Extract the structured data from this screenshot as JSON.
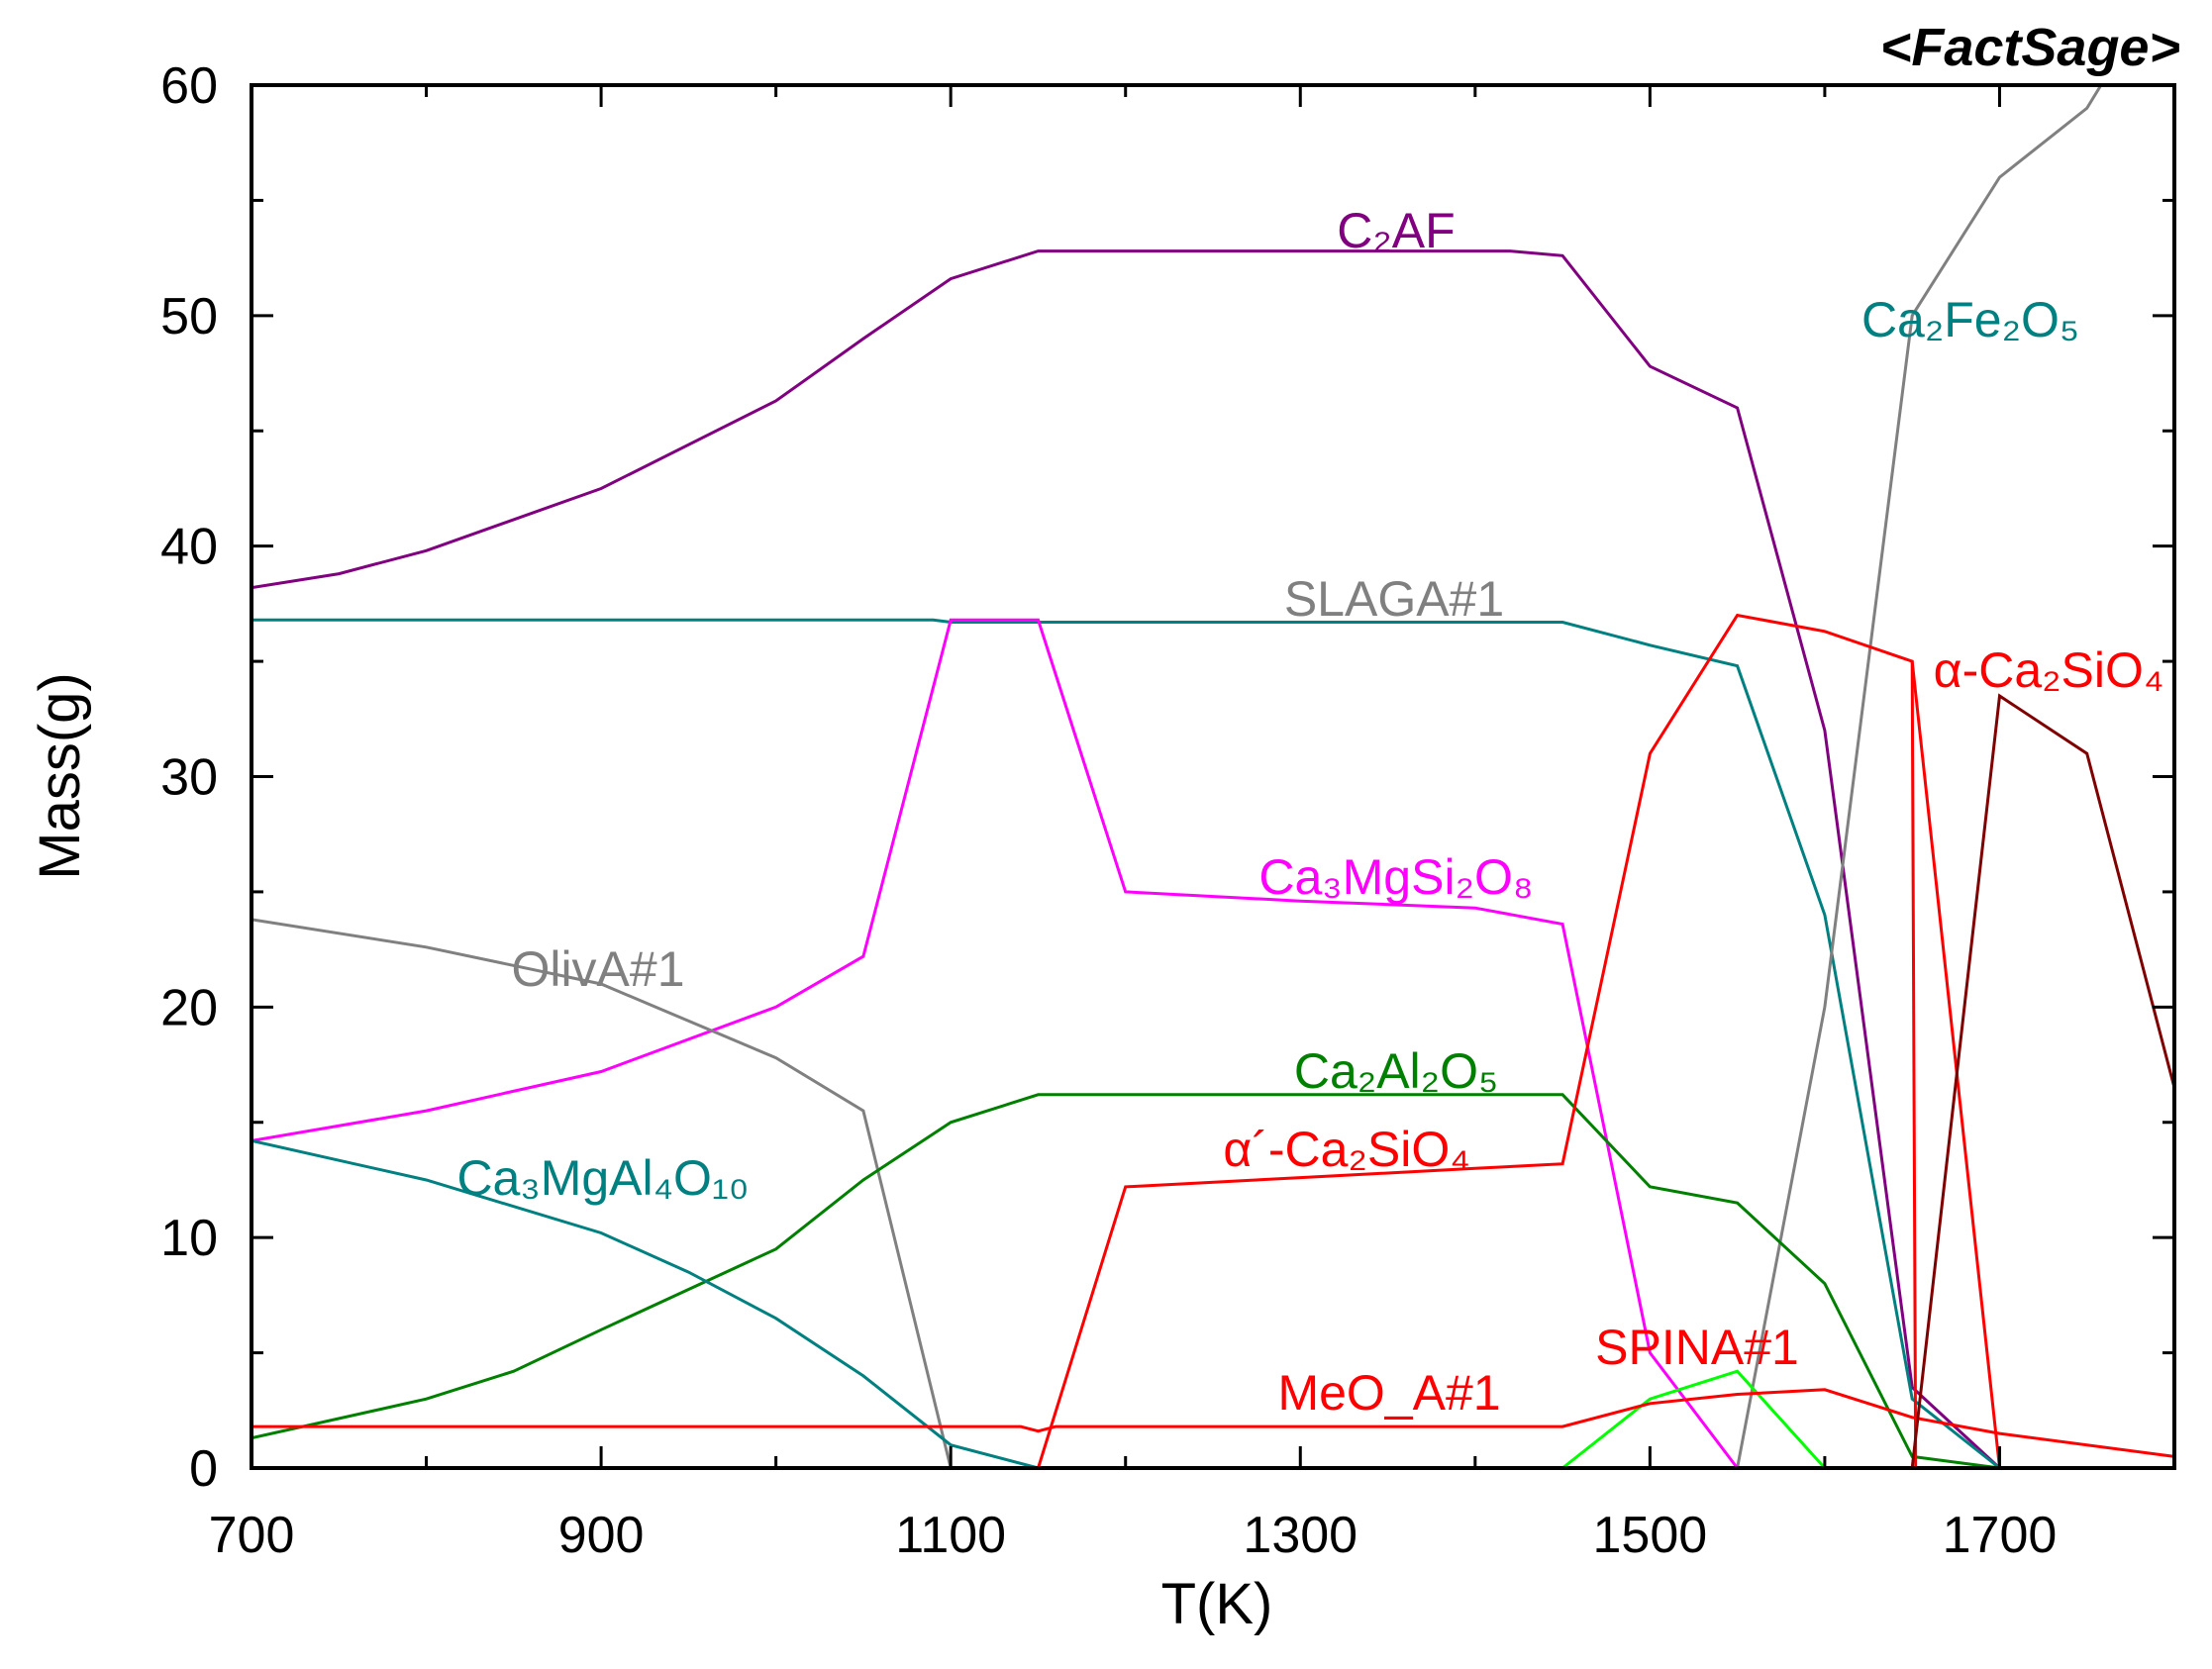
{
  "chart_data": {
    "type": "line",
    "brand": "<FactSage>",
    "xlabel": "T(K)",
    "ylabel": "Mass(g)",
    "xlim": [
      700,
      1800
    ],
    "ylim": [
      0,
      60
    ],
    "x_ticks": [
      700,
      900,
      1100,
      1300,
      1500,
      1700
    ],
    "y_ticks": [
      0,
      10,
      20,
      30,
      40,
      50,
      60
    ],
    "grid": false,
    "series": [
      {
        "name": "C₂AF",
        "color": "#800080",
        "points": [
          [
            700,
            38.2
          ],
          [
            750,
            38.8
          ],
          [
            800,
            39.8
          ],
          [
            900,
            42.5
          ],
          [
            1000,
            46.3
          ],
          [
            1050,
            49
          ],
          [
            1100,
            51.6
          ],
          [
            1150,
            52.8
          ],
          [
            1420,
            52.8
          ],
          [
            1450,
            52.6
          ],
          [
            1500,
            47.8
          ],
          [
            1550,
            46
          ],
          [
            1600,
            32
          ],
          [
            1650,
            3.5
          ],
          [
            1700,
            0
          ]
        ]
      },
      {
        "name": "Ca₂Fe₂O₅",
        "color": "#008080",
        "points": [
          [
            700,
            36.8
          ],
          [
            1090,
            36.8
          ],
          [
            1100,
            36.7
          ],
          [
            1450,
            36.7
          ],
          [
            1500,
            35.7
          ],
          [
            1550,
            34.8
          ],
          [
            1600,
            24
          ],
          [
            1650,
            3
          ],
          [
            1700,
            0
          ]
        ]
      },
      {
        "name": "SLAGA#1",
        "color": "#808080",
        "points": [
          [
            1550,
            0
          ],
          [
            1600,
            20
          ],
          [
            1650,
            50
          ],
          [
            1700,
            56
          ],
          [
            1750,
            59
          ],
          [
            1758,
            60
          ]
        ]
      },
      {
        "name": "α-Ca₂SiO₄",
        "color": "#ff0000",
        "points": [
          [
            1650,
            35
          ],
          [
            1700,
            0
          ]
        ]
      },
      {
        "name": "Ca₃MgSi₂O₈",
        "color": "#ff00ff",
        "points": [
          [
            700,
            14.2
          ],
          [
            800,
            15.5
          ],
          [
            900,
            17.2
          ],
          [
            1000,
            20
          ],
          [
            1050,
            22.2
          ],
          [
            1100,
            36.8
          ],
          [
            1150,
            36.8
          ],
          [
            1200,
            25
          ],
          [
            1300,
            24.6
          ],
          [
            1400,
            24.3
          ],
          [
            1450,
            23.6
          ],
          [
            1500,
            5
          ],
          [
            1550,
            0
          ]
        ]
      },
      {
        "name": "OlivA#1",
        "color": "#808080",
        "points": [
          [
            700,
            23.8
          ],
          [
            800,
            22.6
          ],
          [
            900,
            21
          ],
          [
            1000,
            17.8
          ],
          [
            1050,
            15.5
          ],
          [
            1100,
            0
          ]
        ]
      },
      {
        "name": "Ca₂Al₂O₅",
        "color": "#008000",
        "points": [
          [
            700,
            1.3
          ],
          [
            800,
            3
          ],
          [
            850,
            4.2
          ],
          [
            900,
            6
          ],
          [
            1000,
            9.5
          ],
          [
            1050,
            12.5
          ],
          [
            1100,
            15
          ],
          [
            1150,
            16.2
          ],
          [
            1450,
            16.2
          ],
          [
            1500,
            12.2
          ],
          [
            1550,
            11.5
          ],
          [
            1600,
            8
          ],
          [
            1650,
            0.5
          ],
          [
            1700,
            0
          ]
        ]
      },
      {
        "name": "α´-Ca₂SiO₄",
        "color": "#ff0000",
        "points": [
          [
            1150,
            0
          ],
          [
            1200,
            12.2
          ],
          [
            1300,
            12.6
          ],
          [
            1400,
            13
          ],
          [
            1450,
            13.2
          ],
          [
            1500,
            31
          ],
          [
            1550,
            37
          ],
          [
            1600,
            36.3
          ],
          [
            1650,
            35
          ],
          [
            1652,
            0
          ]
        ]
      },
      {
        "name": "Ca₃MgAl₄O₁₀",
        "color": "#008080",
        "points": [
          [
            700,
            14.2
          ],
          [
            800,
            12.5
          ],
          [
            900,
            10.2
          ],
          [
            950,
            8.5
          ],
          [
            1000,
            6.5
          ],
          [
            1050,
            4
          ],
          [
            1100,
            1
          ],
          [
            1150,
            0
          ]
        ]
      },
      {
        "name": "SPINA#1",
        "color": "#00ff00",
        "label_color": "#ff0000",
        "points": [
          [
            1450,
            0
          ],
          [
            1500,
            3
          ],
          [
            1550,
            4.2
          ],
          [
            1600,
            0
          ]
        ]
      },
      {
        "name": "MeO_A#1",
        "color": "#ff0000",
        "points": [
          [
            700,
            1.8
          ],
          [
            1140,
            1.8
          ],
          [
            1150,
            1.6
          ],
          [
            1160,
            1.8
          ],
          [
            1450,
            1.8
          ],
          [
            1500,
            2.8
          ],
          [
            1550,
            3.2
          ],
          [
            1600,
            3.4
          ],
          [
            1650,
            2.2
          ],
          [
            1700,
            1.5
          ],
          [
            1800,
            0.5
          ]
        ]
      },
      {
        "color": "#800000",
        "points": [
          [
            1650,
            0
          ],
          [
            1700,
            33.5
          ],
          [
            1750,
            31
          ],
          [
            1800,
            16.5
          ]
        ]
      }
    ]
  }
}
